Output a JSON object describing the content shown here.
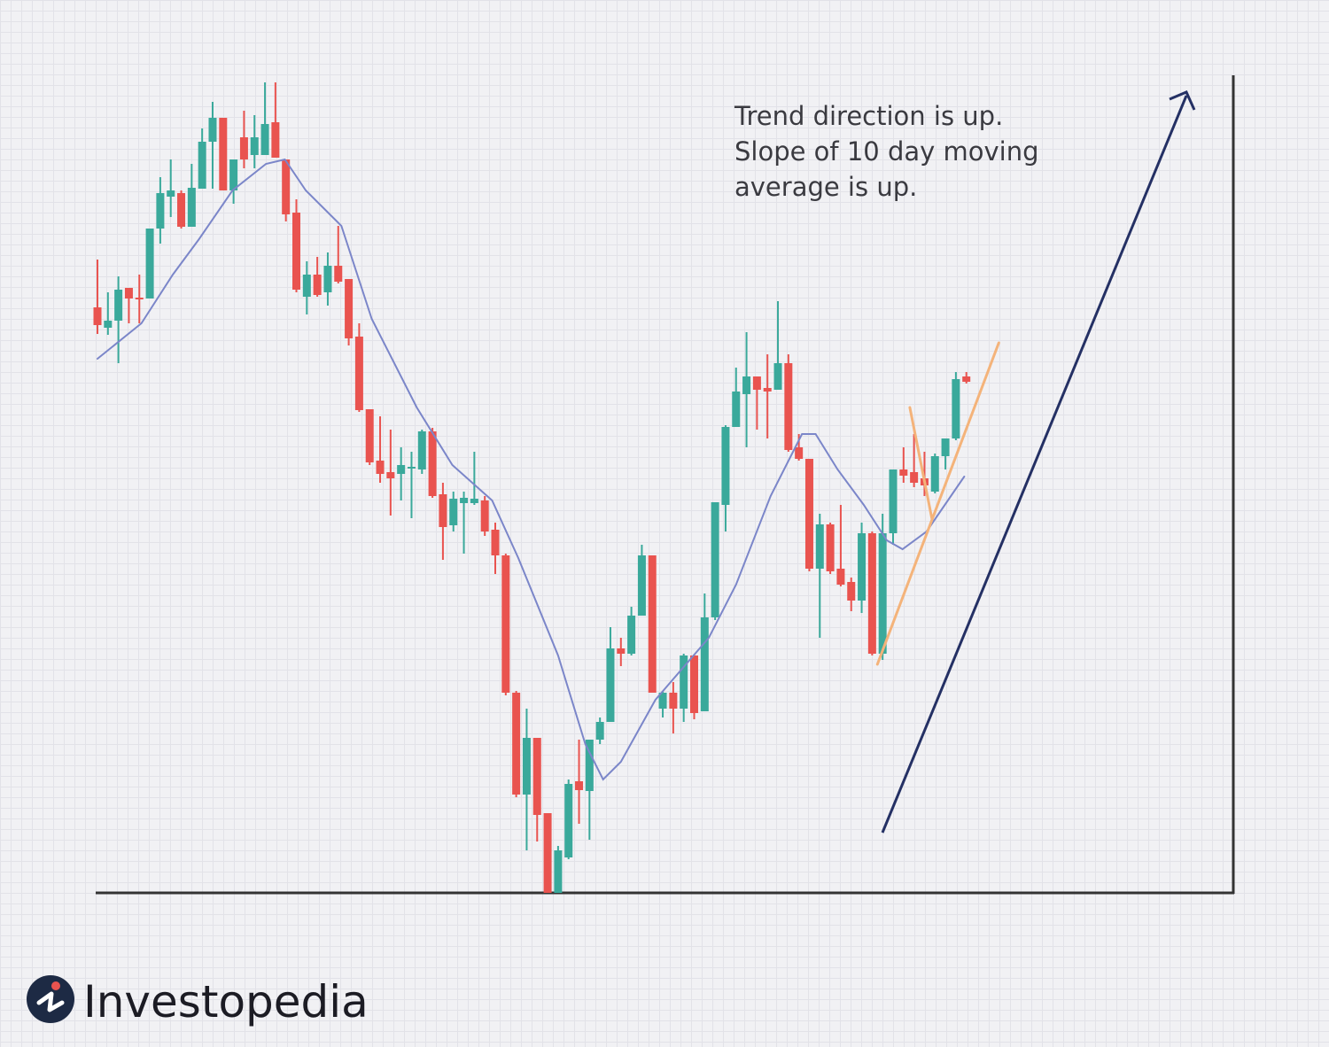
{
  "chart_data": {
    "type": "candlestick",
    "annotation": [
      "Trend direction is up.",
      "Slope of 10 day moving",
      "average is up."
    ],
    "up_color": "#3aa99b",
    "down_color": "#e9534f",
    "xlim": [
      -0.17,
      108.5
    ],
    "ylim": [
      0,
      92.3
    ],
    "candles": {
      "open": [
        66.1,
        63.8,
        64.6,
        68.3,
        67.2,
        67.1,
        75.0,
        78.6,
        79.0,
        75.2,
        79.5,
        84.8,
        87.5,
        79.3,
        85.3,
        83.3,
        83.3,
        87.0,
        82.8,
        76.8,
        67.3,
        69.8,
        67.8,
        70.8,
        69.3,
        62.8,
        54.6,
        48.8,
        47.5,
        47.3,
        48.0,
        47.8,
        52.1,
        45.0,
        41.5,
        44.0,
        44.0,
        44.3,
        41.0,
        38.1,
        22.6,
        11.1,
        17.5,
        9.0,
        0.0,
        4.0,
        12.6,
        11.5,
        17.3,
        19.3,
        27.6,
        27.0,
        31.3,
        38.1,
        20.8,
        22.6,
        20.8,
        26.8,
        20.5,
        31.1,
        43.8,
        52.6,
        56.3,
        58.3,
        57.0,
        56.8,
        59.8,
        50.3,
        49.0,
        36.6,
        41.6,
        36.6,
        35.1,
        33.0,
        40.6,
        27.0,
        40.6,
        47.8,
        47.5,
        46.8,
        45.3,
        49.3,
        51.3,
        58.3
      ],
      "high": [
        71.5,
        67.8,
        69.6,
        68.3,
        69.8,
        75.0,
        80.8,
        82.8,
        79.3,
        82.3,
        86.3,
        89.3,
        87.5,
        82.8,
        88.3,
        87.8,
        91.5,
        91.5,
        82.8,
        78.3,
        71.3,
        71.8,
        72.3,
        75.3,
        69.3,
        64.3,
        54.6,
        53.8,
        52.3,
        50.3,
        49.8,
        52.3,
        52.5,
        46.3,
        45.3,
        45.3,
        49.8,
        44.8,
        41.8,
        38.3,
        22.8,
        20.8,
        17.5,
        9.0,
        5.3,
        12.8,
        17.3,
        17.3,
        19.8,
        30.0,
        28.8,
        32.3,
        39.3,
        38.1,
        22.8,
        23.8,
        27.0,
        26.8,
        33.8,
        44.1,
        52.8,
        59.3,
        63.3,
        58.3,
        60.8,
        66.8,
        60.8,
        51.8,
        49.0,
        42.8,
        41.8,
        43.8,
        35.6,
        41.8,
        40.8,
        42.8,
        47.8,
        50.3,
        51.8,
        49.8,
        49.6,
        51.3,
        58.8,
        58.8
      ],
      "low": [
        63.1,
        63.0,
        59.8,
        64.3,
        64.3,
        67.1,
        73.3,
        76.3,
        75.0,
        75.2,
        79.5,
        79.5,
        79.3,
        77.8,
        81.8,
        81.8,
        83.3,
        83.0,
        75.8,
        67.8,
        65.3,
        67.3,
        66.3,
        68.8,
        61.8,
        54.3,
        48.3,
        46.3,
        42.6,
        44.3,
        42.3,
        47.3,
        44.6,
        37.6,
        40.8,
        38.3,
        43.8,
        40.3,
        36.0,
        22.3,
        10.8,
        4.8,
        5.8,
        0.0,
        0.0,
        3.8,
        7.8,
        6.0,
        16.8,
        19.3,
        25.6,
        26.8,
        31.3,
        22.6,
        19.8,
        18.0,
        19.3,
        19.6,
        20.5,
        30.8,
        40.8,
        52.6,
        50.3,
        52.3,
        51.3,
        56.8,
        49.8,
        48.8,
        36.3,
        28.8,
        36.0,
        34.6,
        31.8,
        31.6,
        26.8,
        26.3,
        39.3,
        46.3,
        45.8,
        44.8,
        45.1,
        47.8,
        51.1,
        57.5
      ],
      "close": [
        64.1,
        64.6,
        68.1,
        67.1,
        67.0,
        75.0,
        79.0,
        79.3,
        75.2,
        79.6,
        84.8,
        87.5,
        79.3,
        82.8,
        82.8,
        85.3,
        86.8,
        83.0,
        76.6,
        68.1,
        69.8,
        67.5,
        70.8,
        69.0,
        62.6,
        54.5,
        48.6,
        47.3,
        46.8,
        48.3,
        48.1,
        52.1,
        44.8,
        41.3,
        44.5,
        44.6,
        44.5,
        40.8,
        38.1,
        22.6,
        11.1,
        17.5,
        8.8,
        0.0,
        4.8,
        12.3,
        11.6,
        17.3,
        19.3,
        27.6,
        27.0,
        31.3,
        38.1,
        22.6,
        22.6,
        20.8,
        26.8,
        20.3,
        31.1,
        44.1,
        52.6,
        56.6,
        58.3,
        56.8,
        56.6,
        59.8,
        50.0,
        49.0,
        36.6,
        41.6,
        36.3,
        34.8,
        33.0,
        40.6,
        27.0,
        40.6,
        47.8,
        47.1,
        46.3,
        46.0,
        49.3,
        51.3,
        58.0,
        57.7
      ]
    },
    "moving_average": {
      "color": "#7b86c9",
      "x": [
        0,
        4.2,
        7.2,
        9.7,
        12.9,
        16.1,
        17.9,
        19.9,
        23.3,
        26.2,
        30.5,
        33.9,
        37.7,
        40.2,
        44.0,
        46.6,
        48.3,
        50.0,
        53.3,
        58.4,
        61.0,
        64.3,
        67.3,
        68.6,
        70.7,
        73.2,
        75.4,
        76.9,
        79.2,
        82.8
      ],
      "values": [
        60.3,
        64.3,
        69.8,
        73.8,
        79.3,
        82.3,
        82.8,
        79.3,
        75.3,
        64.8,
        54.8,
        48.3,
        44.3,
        37.8,
        26.8,
        16.8,
        12.8,
        14.8,
        21.8,
        28.8,
        34.8,
        44.8,
        51.8,
        51.8,
        47.8,
        43.8,
        39.8,
        38.8,
        40.8,
        47.0
      ]
    },
    "trendlines": [
      {
        "color": "#f4b37a",
        "x": [
          74.5,
          86.1
        ],
        "values": [
          25.8,
          62.1
        ]
      },
      {
        "color": "#f4b37a",
        "x": [
          77.6,
          79.7
        ],
        "values": [
          54.8,
          42.3
        ]
      }
    ]
  },
  "logo": {
    "text": "Investopedia"
  }
}
